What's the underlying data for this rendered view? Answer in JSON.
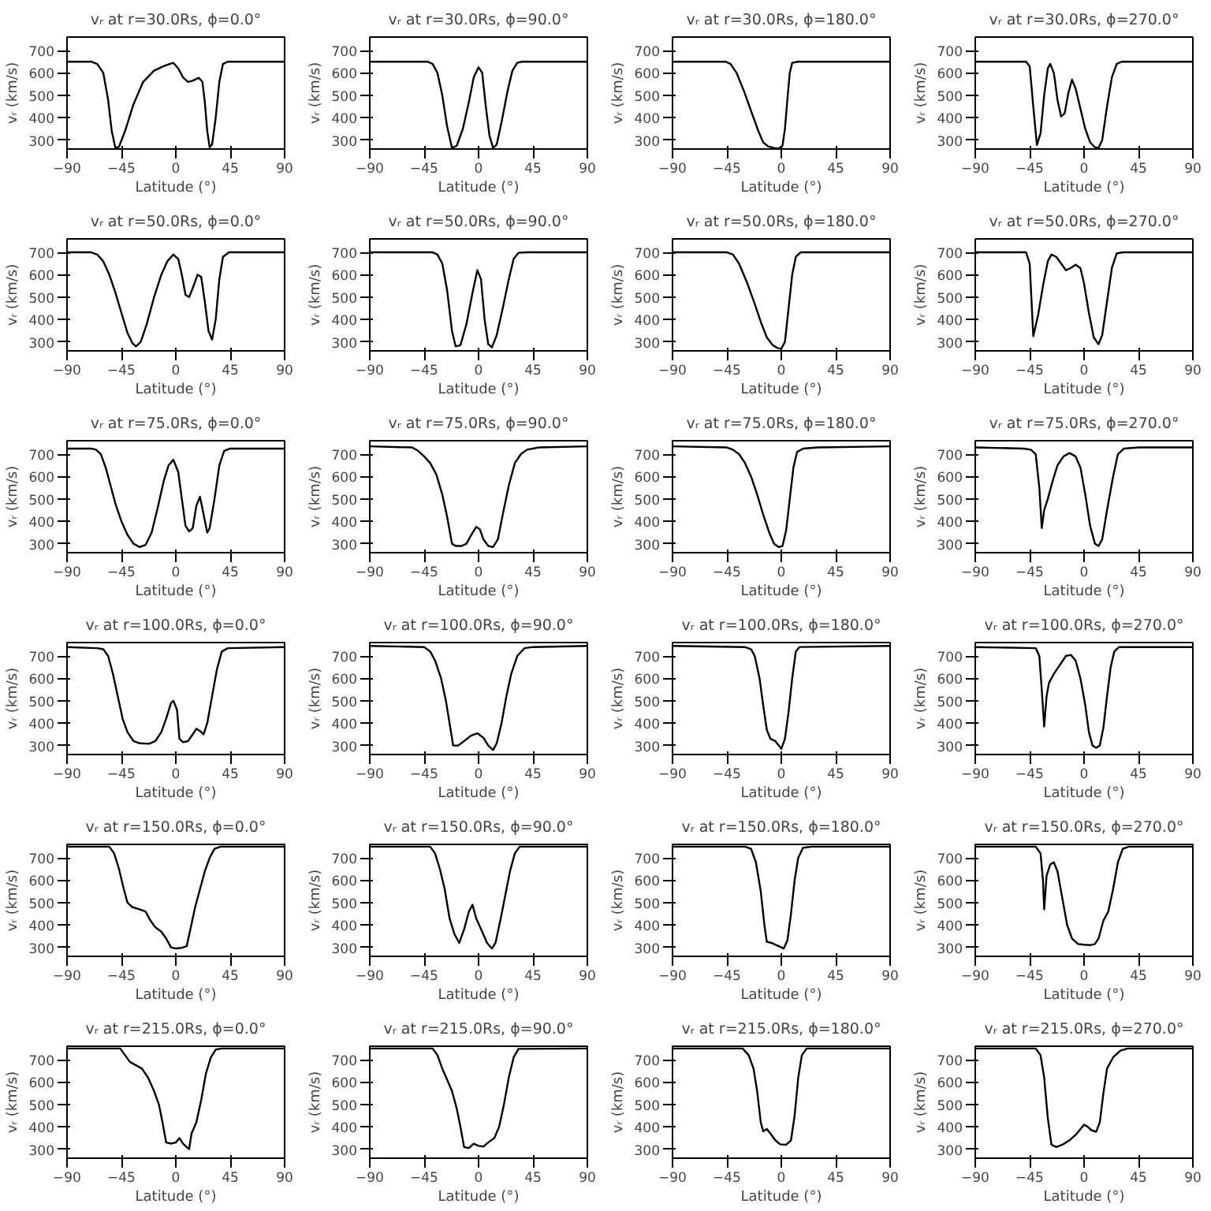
{
  "chart_data": [
    {
      "type": "line",
      "title": "vᵣ at r=30.0Rs, ϕ=0.0°",
      "xlabel": "Latitude (°)",
      "ylabel": "vᵣ (km/s)",
      "color": "#000000",
      "xlim": [
        -90,
        90
      ],
      "xticks": [
        -90,
        -45,
        0,
        45,
        90
      ],
      "ylim": [
        260,
        760
      ],
      "yticks": [
        300,
        400,
        500,
        600,
        700
      ],
      "x": [
        -90,
        -70,
        -65,
        -60,
        -56,
        -53,
        -50,
        -47,
        -42,
        -35,
        -27,
        -18,
        -10,
        -5,
        -2,
        2,
        6,
        10,
        14,
        19,
        22,
        24,
        26,
        28,
        30,
        33,
        36,
        39,
        43,
        90
      ],
      "values": [
        650,
        650,
        640,
        600,
        480,
        340,
        265,
        270,
        340,
        460,
        560,
        610,
        630,
        640,
        645,
        620,
        580,
        560,
        565,
        578,
        560,
        470,
        340,
        268,
        280,
        400,
        560,
        640,
        650,
        650
      ]
    },
    {
      "type": "line",
      "title": "vᵣ at r=30.0Rs, ϕ=90.0°",
      "xlabel": "Latitude (°)",
      "ylabel": "vᵣ (km/s)",
      "color": "#000000",
      "xlim": [
        -90,
        90
      ],
      "xticks": [
        -90,
        -45,
        0,
        45,
        90
      ],
      "ylim": [
        260,
        760
      ],
      "yticks": [
        300,
        400,
        500,
        600,
        700
      ],
      "x": [
        -90,
        -42,
        -38,
        -34,
        -30,
        -26,
        -22,
        -18,
        -13,
        -8,
        -4,
        0,
        3,
        6,
        9,
        12,
        15,
        19,
        24,
        28,
        32,
        36,
        90
      ],
      "values": [
        650,
        650,
        640,
        600,
        500,
        360,
        265,
        275,
        350,
        470,
        580,
        625,
        600,
        450,
        320,
        265,
        280,
        380,
        520,
        610,
        645,
        650,
        650
      ]
    },
    {
      "type": "line",
      "title": "vᵣ at r=30.0Rs, ϕ=180.0°",
      "xlabel": "Latitude (°)",
      "ylabel": "vᵣ (km/s)",
      "color": "#000000",
      "xlim": [
        -90,
        90
      ],
      "xticks": [
        -90,
        -45,
        0,
        45,
        90
      ],
      "ylim": [
        260,
        760
      ],
      "yticks": [
        300,
        400,
        500,
        600,
        700
      ],
      "x": [
        -90,
        -46,
        -42,
        -37,
        -31,
        -25,
        -19,
        -15,
        -11,
        -6,
        -2,
        1,
        3,
        5,
        7,
        9,
        14,
        90
      ],
      "values": [
        650,
        650,
        640,
        600,
        520,
        430,
        340,
        290,
        272,
        265,
        262,
        275,
        350,
        480,
        600,
        645,
        650,
        650
      ]
    },
    {
      "type": "line",
      "title": "vᵣ at r=30.0Rs, ϕ=270.0°",
      "xlabel": "Latitude (°)",
      "ylabel": "vᵣ (km/s)",
      "color": "#000000",
      "xlim": [
        -90,
        90
      ],
      "xticks": [
        -90,
        -45,
        0,
        45,
        90
      ],
      "ylim": [
        260,
        760
      ],
      "yticks": [
        300,
        400,
        500,
        600,
        700
      ],
      "x": [
        -90,
        -48,
        -45,
        -42,
        -39,
        -36,
        -33,
        -30,
        -28,
        -25,
        -22,
        -19,
        -16,
        -13,
        -10,
        -7,
        -3,
        1,
        5,
        9,
        12,
        15,
        19,
        23,
        27,
        31,
        90
      ],
      "values": [
        650,
        650,
        630,
        450,
        278,
        330,
        500,
        620,
        640,
        600,
        480,
        405,
        420,
        510,
        570,
        530,
        440,
        350,
        290,
        268,
        265,
        300,
        450,
        580,
        640,
        650,
        650
      ]
    },
    {
      "type": "line",
      "title": "vᵣ at r=50.0Rs, ϕ=0.0°",
      "xlabel": "Latitude (°)",
      "ylabel": "vᵣ (km/s)",
      "color": "#000000",
      "xlim": [
        -90,
        90
      ],
      "xticks": [
        -90,
        -45,
        0,
        45,
        90
      ],
      "ylim": [
        260,
        760
      ],
      "yticks": [
        300,
        400,
        500,
        600,
        700
      ],
      "x": [
        -90,
        -70,
        -65,
        -60,
        -55,
        -50,
        -45,
        -40,
        -36,
        -33,
        -29,
        -24,
        -18,
        -12,
        -7,
        -2,
        2,
        5,
        8,
        11,
        14,
        18,
        21,
        24,
        27,
        30,
        33,
        36,
        39,
        44,
        90
      ],
      "values": [
        700,
        700,
        690,
        660,
        600,
        520,
        430,
        340,
        295,
        280,
        300,
        380,
        500,
        600,
        660,
        690,
        670,
        600,
        510,
        500,
        540,
        600,
        590,
        480,
        350,
        310,
        400,
        580,
        680,
        700,
        700
      ]
    },
    {
      "type": "line",
      "title": "vᵣ at r=50.0Rs, ϕ=90.0°",
      "xlabel": "Latitude (°)",
      "ylabel": "vᵣ (km/s)",
      "color": "#000000",
      "xlim": [
        -90,
        90
      ],
      "xticks": [
        -90,
        -45,
        0,
        45,
        90
      ],
      "ylim": [
        260,
        760
      ],
      "yticks": [
        300,
        400,
        500,
        600,
        700
      ],
      "x": [
        -90,
        -38,
        -34,
        -30,
        -26,
        -22,
        -19,
        -15,
        -10,
        -5,
        -1,
        2,
        5,
        8,
        11,
        15,
        20,
        25,
        29,
        33,
        40,
        90
      ],
      "values": [
        700,
        700,
        690,
        650,
        530,
        350,
        280,
        285,
        380,
        520,
        620,
        580,
        400,
        290,
        275,
        330,
        450,
        580,
        670,
        698,
        700,
        700
      ]
    },
    {
      "type": "line",
      "title": "vᵣ at r=50.0Rs, ϕ=180.0°",
      "xlabel": "Latitude (°)",
      "ylabel": "vᵣ (km/s)",
      "color": "#000000",
      "xlim": [
        -90,
        90
      ],
      "xticks": [
        -90,
        -45,
        0,
        45,
        90
      ],
      "ylim": [
        260,
        760
      ],
      "yticks": [
        300,
        400,
        500,
        600,
        700
      ],
      "x": [
        -90,
        -45,
        -40,
        -35,
        -28,
        -22,
        -17,
        -12,
        -7,
        -3,
        0,
        3,
        6,
        9,
        12,
        16,
        90
      ],
      "values": [
        700,
        700,
        690,
        650,
        560,
        470,
        390,
        320,
        285,
        272,
        270,
        300,
        450,
        600,
        680,
        700,
        700
      ]
    },
    {
      "type": "line",
      "title": "vᵣ at r=50.0Rs, ϕ=270.0°",
      "xlabel": "Latitude (°)",
      "ylabel": "vᵣ (km/s)",
      "color": "#000000",
      "xlim": [
        -90,
        90
      ],
      "xticks": [
        -90,
        -45,
        0,
        45,
        90
      ],
      "ylim": [
        260,
        760
      ],
      "yticks": [
        300,
        400,
        500,
        600,
        700
      ],
      "x": [
        -90,
        -48,
        -45,
        -42,
        -38,
        -34,
        -30,
        -27,
        -23,
        -19,
        -15,
        -11,
        -7,
        -3,
        0,
        4,
        8,
        12,
        15,
        19,
        23,
        27,
        32,
        90
      ],
      "values": [
        700,
        700,
        650,
        325,
        420,
        550,
        660,
        690,
        680,
        650,
        620,
        630,
        645,
        630,
        560,
        430,
        320,
        290,
        330,
        480,
        630,
        695,
        700,
        700
      ]
    },
    {
      "type": "line",
      "title": "vᵣ at r=75.0Rs, ϕ=0.0°",
      "xlabel": "Latitude (°)",
      "ylabel": "vᵣ (km/s)",
      "color": "#000000",
      "xlim": [
        -90,
        90
      ],
      "xticks": [
        -90,
        -45,
        0,
        45,
        90
      ],
      "ylim": [
        260,
        760
      ],
      "yticks": [
        300,
        400,
        500,
        600,
        700
      ],
      "x": [
        -90,
        -70,
        -66,
        -62,
        -58,
        -54,
        -50,
        -45,
        -40,
        -35,
        -30,
        -25,
        -20,
        -15,
        -10,
        -6,
        -2,
        2,
        5,
        8,
        11,
        14,
        17,
        20,
        23,
        26,
        28,
        32,
        36,
        40,
        45,
        90
      ],
      "values": [
        725,
        725,
        720,
        700,
        640,
        560,
        480,
        400,
        340,
        300,
        285,
        295,
        350,
        460,
        580,
        650,
        675,
        620,
        500,
        380,
        355,
        370,
        470,
        510,
        430,
        350,
        370,
        500,
        650,
        715,
        725,
        725
      ]
    },
    {
      "type": "line",
      "title": "vᵣ at r=75.0Rs, ϕ=90.0°",
      "xlabel": "Latitude (°)",
      "ylabel": "vᵣ (km/s)",
      "color": "#000000",
      "xlim": [
        -90,
        90
      ],
      "xticks": [
        -90,
        -45,
        0,
        45,
        90
      ],
      "ylim": [
        260,
        760
      ],
      "yticks": [
        300,
        400,
        500,
        600,
        700
      ],
      "x": [
        -90,
        -55,
        -50,
        -45,
        -40,
        -35,
        -30,
        -26,
        -22,
        -19,
        -14,
        -10,
        -6,
        -2,
        1,
        4,
        8,
        12,
        16,
        20,
        25,
        30,
        35,
        40,
        50,
        90
      ],
      "values": [
        735,
        730,
        715,
        690,
        660,
        610,
        520,
        420,
        300,
        290,
        290,
        300,
        340,
        375,
        365,
        320,
        290,
        285,
        320,
        430,
        560,
        660,
        700,
        720,
        730,
        735
      ]
    },
    {
      "type": "line",
      "title": "vᵣ at r=75.0Rs, ϕ=180.0°",
      "xlabel": "Latitude (°)",
      "ylabel": "vᵣ (km/s)",
      "color": "#000000",
      "xlim": [
        -90,
        90
      ],
      "xticks": [
        -90,
        -45,
        0,
        45,
        90
      ],
      "ylim": [
        260,
        760
      ],
      "yticks": [
        300,
        400,
        500,
        600,
        700
      ],
      "x": [
        -90,
        -45,
        -40,
        -35,
        -30,
        -25,
        -20,
        -15,
        -10,
        -6,
        -2,
        1,
        4,
        7,
        10,
        13,
        18,
        30,
        90
      ],
      "values": [
        735,
        730,
        720,
        700,
        660,
        600,
        520,
        430,
        350,
        300,
        285,
        290,
        360,
        500,
        640,
        710,
        725,
        730,
        735
      ]
    },
    {
      "type": "line",
      "title": "vᵣ at r=75.0Rs, ϕ=270.0°",
      "xlabel": "Latitude (°)",
      "ylabel": "vᵣ (km/s)",
      "color": "#000000",
      "xlim": [
        -90,
        90
      ],
      "xticks": [
        -90,
        -45,
        0,
        45,
        90
      ],
      "ylim": [
        260,
        760
      ],
      "yticks": [
        300,
        400,
        500,
        600,
        700
      ],
      "x": [
        -90,
        -50,
        -44,
        -40,
        -37,
        -35,
        -33,
        -30,
        -26,
        -22,
        -17,
        -12,
        -7,
        -3,
        1,
        5,
        9,
        12,
        15,
        19,
        24,
        28,
        33,
        45,
        90
      ],
      "values": [
        730,
        725,
        720,
        700,
        550,
        370,
        450,
        500,
        580,
        650,
        690,
        705,
        690,
        640,
        520,
        380,
        300,
        290,
        320,
        450,
        600,
        700,
        725,
        730,
        730
      ]
    },
    {
      "type": "line",
      "title": "vᵣ at r=100.0Rs, ϕ=0.0°",
      "xlabel": "Latitude (°)",
      "ylabel": "vᵣ (km/s)",
      "color": "#000000",
      "xlim": [
        -90,
        90
      ],
      "xticks": [
        -90,
        -45,
        0,
        45,
        90
      ],
      "ylim": [
        260,
        760
      ],
      "yticks": [
        300,
        400,
        500,
        600,
        700
      ],
      "x": [
        -90,
        -65,
        -60,
        -56,
        -52,
        -48,
        -44,
        -40,
        -35,
        -30,
        -22,
        -17,
        -12,
        -8,
        -4,
        -2,
        1,
        3,
        6,
        10,
        14,
        17,
        20,
        23,
        26,
        30,
        34,
        38,
        43,
        90
      ],
      "values": [
        740,
        735,
        730,
        700,
        620,
        520,
        420,
        360,
        320,
        310,
        308,
        320,
        360,
        420,
        490,
        500,
        460,
        330,
        315,
        320,
        350,
        375,
        365,
        350,
        400,
        520,
        640,
        720,
        735,
        740
      ]
    },
    {
      "type": "line",
      "title": "vᵣ at r=100.0Rs, ϕ=90.0°",
      "xlabel": "Latitude (°)",
      "ylabel": "vᵣ (km/s)",
      "color": "#000000",
      "xlim": [
        -90,
        90
      ],
      "xticks": [
        -90,
        -45,
        0,
        45,
        90
      ],
      "ylim": [
        260,
        760
      ],
      "yticks": [
        300,
        400,
        500,
        600,
        700
      ],
      "x": [
        -90,
        -45,
        -40,
        -36,
        -31,
        -27,
        -24,
        -21,
        -17,
        -12,
        -6,
        -1,
        4,
        8,
        12,
        15,
        19,
        23,
        27,
        32,
        38,
        45,
        90
      ],
      "values": [
        745,
        740,
        720,
        680,
        600,
        500,
        400,
        300,
        300,
        320,
        345,
        355,
        335,
        300,
        280,
        310,
        400,
        520,
        620,
        700,
        735,
        740,
        745
      ]
    },
    {
      "type": "line",
      "title": "vᵣ at r=100.0Rs, ϕ=180.0°",
      "xlabel": "Latitude (°)",
      "ylabel": "vᵣ (km/s)",
      "color": "#000000",
      "xlim": [
        -90,
        90
      ],
      "xticks": [
        -90,
        -45,
        0,
        45,
        90
      ],
      "ylim": [
        260,
        760
      ],
      "yticks": [
        300,
        400,
        500,
        600,
        700
      ],
      "x": [
        -90,
        -30,
        -25,
        -22,
        -18,
        -15,
        -12,
        -9,
        -5,
        -2,
        0,
        3,
        6,
        9,
        12,
        15,
        90
      ],
      "values": [
        745,
        740,
        730,
        700,
        600,
        480,
        370,
        330,
        320,
        300,
        285,
        330,
        450,
        600,
        720,
        740,
        745
      ]
    },
    {
      "type": "line",
      "title": "vᵣ at r=100.0Rs, ϕ=270.0°",
      "xlabel": "Latitude (°)",
      "ylabel": "vᵣ (km/s)",
      "color": "#000000",
      "xlim": [
        -90,
        90
      ],
      "xticks": [
        -90,
        -45,
        0,
        45,
        90
      ],
      "ylim": [
        260,
        760
      ],
      "yticks": [
        300,
        400,
        500,
        600,
        700
      ],
      "x": [
        -90,
        -40,
        -37,
        -35,
        -33,
        -31,
        -29,
        -25,
        -20,
        -15,
        -11,
        -7,
        -3,
        1,
        4,
        7,
        10,
        13,
        16,
        19,
        22,
        25,
        29,
        90
      ],
      "values": [
        740,
        735,
        700,
        550,
        385,
        520,
        580,
        620,
        660,
        700,
        705,
        680,
        600,
        480,
        360,
        300,
        290,
        300,
        380,
        520,
        650,
        720,
        740,
        740
      ]
    },
    {
      "type": "line",
      "title": "vᵣ at r=150.0Rs, ϕ=0.0°",
      "xlabel": "Latitude (°)",
      "ylabel": "vᵣ (km/s)",
      "color": "#000000",
      "xlim": [
        -90,
        90
      ],
      "xticks": [
        -90,
        -45,
        0,
        45,
        90
      ],
      "ylim": [
        260,
        760
      ],
      "yticks": [
        300,
        400,
        500,
        600,
        700
      ],
      "x": [
        -90,
        -55,
        -51,
        -47,
        -43,
        -40,
        -36,
        -30,
        -25,
        -21,
        -17,
        -12,
        -8,
        -4,
        0,
        5,
        9,
        12,
        16,
        20,
        24,
        28,
        32,
        37,
        90
      ],
      "values": [
        750,
        750,
        720,
        650,
        560,
        500,
        480,
        470,
        460,
        420,
        390,
        370,
        340,
        300,
        295,
        298,
        305,
        380,
        480,
        560,
        640,
        700,
        740,
        750,
        750
      ]
    },
    {
      "type": "line",
      "title": "vᵣ at r=150.0Rs, ϕ=90.0°",
      "xlabel": "Latitude (°)",
      "ylabel": "vᵣ (km/s)",
      "color": "#000000",
      "xlim": [
        -90,
        90
      ],
      "xticks": [
        -90,
        -45,
        0,
        45,
        90
      ],
      "ylim": [
        260,
        760
      ],
      "yticks": [
        300,
        400,
        500,
        600,
        700
      ],
      "x": [
        -90,
        -40,
        -36,
        -32,
        -28,
        -24,
        -20,
        -16,
        -12,
        -8,
        -5,
        -2,
        3,
        7,
        11,
        14,
        18,
        22,
        26,
        30,
        34,
        90
      ],
      "values": [
        750,
        750,
        720,
        650,
        560,
        430,
        360,
        320,
        380,
        460,
        490,
        430,
        370,
        320,
        295,
        320,
        420,
        530,
        640,
        720,
        750,
        750
      ]
    },
    {
      "type": "line",
      "title": "vᵣ at r=150.0Rs, ϕ=180.0°",
      "xlabel": "Latitude (°)",
      "ylabel": "vᵣ (km/s)",
      "color": "#000000",
      "xlim": [
        -90,
        90
      ],
      "xticks": [
        -90,
        -45,
        0,
        45,
        90
      ],
      "ylim": [
        260,
        760
      ],
      "yticks": [
        300,
        400,
        500,
        600,
        700
      ],
      "x": [
        -90,
        -30,
        -25,
        -21,
        -17,
        -14,
        -12,
        -8,
        -4,
        0,
        2,
        5,
        8,
        11,
        14,
        18,
        25,
        90
      ],
      "values": [
        750,
        750,
        740,
        680,
        550,
        400,
        325,
        320,
        310,
        300,
        295,
        330,
        450,
        600,
        700,
        745,
        750,
        750
      ]
    },
    {
      "type": "line",
      "title": "vᵣ at r=150.0Rs, ϕ=270.0°",
      "xlabel": "Latitude (°)",
      "ylabel": "vᵣ (km/s)",
      "color": "#000000",
      "xlim": [
        -90,
        90
      ],
      "xticks": [
        -90,
        -45,
        0,
        45,
        90
      ],
      "ylim": [
        260,
        760
      ],
      "yticks": [
        300,
        400,
        500,
        600,
        700
      ],
      "x": [
        -90,
        -40,
        -36,
        -34,
        -33,
        -31,
        -28,
        -25,
        -22,
        -18,
        -14,
        -10,
        -5,
        0,
        5,
        9,
        12,
        16,
        20,
        24,
        28,
        32,
        37,
        90
      ],
      "values": [
        750,
        750,
        720,
        600,
        470,
        620,
        670,
        680,
        640,
        520,
        400,
        340,
        315,
        312,
        310,
        315,
        340,
        420,
        460,
        560,
        680,
        740,
        750,
        750
      ]
    },
    {
      "type": "line",
      "title": "vᵣ at r=215.0Rs, ϕ=0.0°",
      "xlabel": "Latitude (°)",
      "ylabel": "vᵣ (km/s)",
      "color": "#000000",
      "xlim": [
        -90,
        90
      ],
      "xticks": [
        -90,
        -45,
        0,
        45,
        90
      ],
      "ylim": [
        260,
        760
      ],
      "yticks": [
        300,
        400,
        500,
        600,
        700
      ],
      "x": [
        -90,
        -46,
        -42,
        -38,
        -33,
        -28,
        -23,
        -18,
        -14,
        -11,
        -8,
        -4,
        0,
        3,
        6,
        9,
        11,
        13,
        17,
        21,
        25,
        29,
        33,
        38,
        90
      ],
      "values": [
        750,
        750,
        720,
        690,
        675,
        660,
        620,
        560,
        500,
        420,
        330,
        325,
        330,
        350,
        325,
        310,
        300,
        370,
        420,
        520,
        640,
        710,
        745,
        750,
        750
      ]
    },
    {
      "type": "line",
      "title": "vᵣ at r=215.0Rs, ϕ=90.0°",
      "xlabel": "Latitude (°)",
      "ylabel": "vᵣ (km/s)",
      "color": "#000000",
      "xlim": [
        -90,
        90
      ],
      "xticks": [
        -90,
        -45,
        0,
        45,
        90
      ],
      "ylim": [
        260,
        760
      ],
      "yticks": [
        300,
        400,
        500,
        600,
        700
      ],
      "x": [
        -90,
        -38,
        -34,
        -30,
        -26,
        -22,
        -18,
        -15,
        -12,
        -8,
        -4,
        0,
        4,
        8,
        13,
        17,
        21,
        25,
        29,
        33,
        90
      ],
      "values": [
        750,
        750,
        720,
        660,
        610,
        560,
        480,
        400,
        310,
        305,
        325,
        315,
        312,
        330,
        350,
        400,
        500,
        620,
        710,
        748,
        750
      ]
    },
    {
      "type": "line",
      "title": "vᵣ at r=215.0Rs, ϕ=180.0°",
      "xlabel": "Latitude (°)",
      "ylabel": "vᵣ (km/s)",
      "color": "#000000",
      "xlim": [
        -90,
        90
      ],
      "xticks": [
        -90,
        -45,
        0,
        45,
        90
      ],
      "ylim": [
        260,
        760
      ],
      "yticks": [
        300,
        400,
        500,
        600,
        700
      ],
      "x": [
        -90,
        -32,
        -27,
        -23,
        -20,
        -17,
        -15,
        -12,
        -9,
        -5,
        -1,
        4,
        8,
        11,
        14,
        17,
        21,
        90
      ],
      "values": [
        750,
        750,
        720,
        660,
        560,
        420,
        380,
        390,
        370,
        340,
        322,
        320,
        340,
        450,
        620,
        720,
        750,
        750
      ]
    },
    {
      "type": "line",
      "title": "vᵣ at r=215.0Rs, ϕ=270.0°",
      "xlabel": "Latitude (°)",
      "ylabel": "vᵣ (km/s)",
      "color": "#000000",
      "xlim": [
        -90,
        90
      ],
      "xticks": [
        -90,
        -45,
        0,
        45,
        90
      ],
      "ylim": [
        260,
        760
      ],
      "yticks": [
        300,
        400,
        500,
        600,
        700
      ],
      "x": [
        -90,
        -40,
        -36,
        -33,
        -30,
        -27,
        -23,
        -18,
        -12,
        -6,
        0,
        3,
        6,
        10,
        13,
        16,
        19,
        24,
        30,
        36,
        90
      ],
      "values": [
        750,
        750,
        720,
        620,
        440,
        320,
        310,
        320,
        340,
        370,
        410,
        400,
        385,
        378,
        420,
        550,
        660,
        710,
        740,
        750,
        750
      ]
    }
  ]
}
